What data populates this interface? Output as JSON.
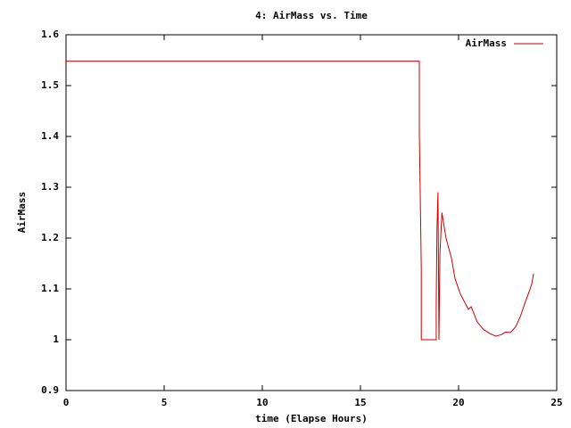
{
  "chart_data": {
    "type": "line",
    "title": "4: AirMass vs. Time",
    "x_label": "time (Elapse Hours)",
    "y_label": "AirMass",
    "x": [
      0,
      18.0,
      18.0,
      18.1,
      18.1,
      18.86,
      18.86,
      18.9,
      18.95,
      19.0,
      19.05,
      19.15,
      19.36,
      19.64,
      19.82,
      20.09,
      20.36,
      20.5,
      20.64,
      20.95,
      21.27,
      21.6,
      21.9,
      22.18,
      22.4,
      22.64,
      22.9,
      23.14,
      23.36,
      23.6,
      23.73,
      23.82
    ],
    "series": [
      {
        "name": "AirMass",
        "color": "#cc0000",
        "values": [
          1.548,
          1.548,
          1.41,
          1.14,
          1.0,
          1.0,
          1.07,
          1.22,
          1.29,
          1.0,
          1.17,
          1.25,
          1.2,
          1.16,
          1.12,
          1.09,
          1.07,
          1.06,
          1.065,
          1.035,
          1.02,
          1.012,
          1.007,
          1.01,
          1.015,
          1.014,
          1.025,
          1.045,
          1.07,
          1.095,
          1.11,
          1.13
        ]
      }
    ],
    "xlim": [
      0,
      25
    ],
    "xticks": [
      0,
      5,
      10,
      15,
      20,
      25
    ],
    "ylim": [
      0.9,
      1.6
    ],
    "yticks": [
      0.9,
      1,
      1.1,
      1.2,
      1.3,
      1.4,
      1.5,
      1.6
    ],
    "legend": "top right",
    "grid": false
  }
}
